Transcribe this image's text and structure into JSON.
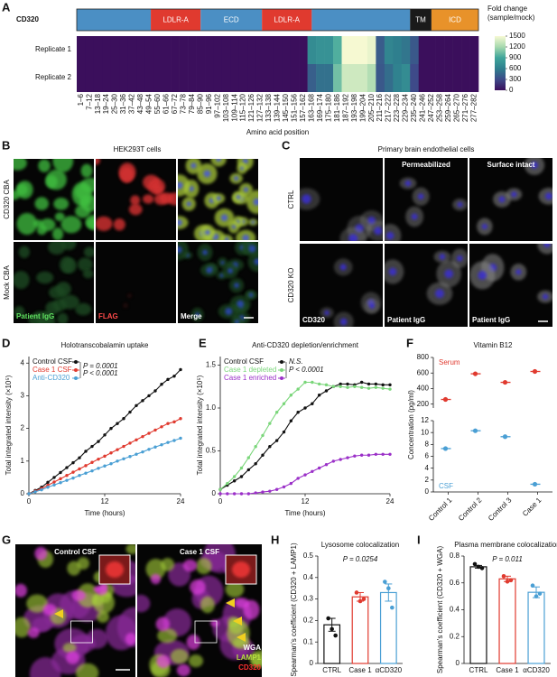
{
  "chart_data": [
    {
      "panel": "A",
      "type": "heatmap",
      "protein": "CD320",
      "domains": {
        "labels": [
          null,
          "LDLR-A",
          "ECD",
          "LDLR-A",
          null,
          "TM",
          "ICD"
        ],
        "starts": [
          0,
          52,
          87,
          130,
          165,
          234,
          249
        ],
        "ends": [
          52,
          87,
          130,
          165,
          234,
          249,
          282
        ],
        "colors": [
          "#4b8fc4",
          "#e03a2f",
          "#4b8fc4",
          "#e03a2f",
          "#4b8fc4",
          "#1a1a1a",
          "#e8922a"
        ]
      },
      "xlim": [
        0,
        282
      ],
      "categories": [
        "1–6",
        "7–12",
        "13–18",
        "19–24",
        "25–30",
        "31–36",
        "37–42",
        "43–48",
        "49–54",
        "55–60",
        "61–66",
        "67–72",
        "73–78",
        "79–84",
        "85–90",
        "91–96",
        "97–102",
        "103–108",
        "109–114",
        "115–120",
        "121–126",
        "127–132",
        "133–138",
        "139–144",
        "145–150",
        "151–156",
        "157–162",
        "163–168",
        "169–174",
        "175–180",
        "181–186",
        "187–192",
        "193–198",
        "199–204",
        "205–210",
        "211–216",
        "217–222",
        "223–228",
        "229–234",
        "235–240",
        "241–246",
        "247–252",
        "253–258",
        "259–264",
        "265–270",
        "271–276",
        "277–282"
      ],
      "series": [
        {
          "name": "Replicate 1",
          "values": [
            0,
            0,
            0,
            0,
            0,
            0,
            0,
            0,
            0,
            0,
            0,
            0,
            0,
            0,
            0,
            0,
            0,
            0,
            0,
            0,
            0,
            0,
            0,
            0,
            0,
            0,
            0,
            700,
            750,
            750,
            950,
            1500,
            1500,
            1500,
            1450,
            400,
            650,
            600,
            550,
            380,
            0,
            0,
            0,
            0,
            0,
            0,
            0
          ]
        },
        {
          "name": "Replicate 2",
          "values": [
            0,
            0,
            0,
            0,
            0,
            0,
            0,
            0,
            0,
            0,
            0,
            0,
            0,
            0,
            0,
            0,
            0,
            0,
            0,
            0,
            0,
            0,
            0,
            0,
            0,
            0,
            0,
            420,
            520,
            520,
            1050,
            1350,
            1350,
            1350,
            1250,
            380,
            500,
            620,
            700,
            300,
            0,
            0,
            0,
            0,
            0,
            0,
            0
          ]
        }
      ],
      "xlabel": "Amino acid position",
      "colorbar": {
        "title": "Fold change (sample/mock)",
        "lim": [
          0,
          1500
        ],
        "ticks": [
          0,
          300,
          600,
          900,
          1200,
          1500
        ],
        "colors": [
          "#3b0f5c",
          "#3e4a89",
          "#2f7f8e",
          "#3fa59b",
          "#a6d9ae",
          "#f6f9d2"
        ]
      }
    },
    {
      "panel": "D",
      "type": "line",
      "title": "Holotranscobalamin uptake",
      "xlabel": "Time (hours)",
      "ylabel": "Total integrated intensity (×10⁵)",
      "x": [
        0,
        1,
        2,
        3,
        4,
        5,
        6,
        7,
        8,
        9,
        10,
        11,
        12,
        13,
        14,
        15,
        16,
        17,
        18,
        19,
        20,
        21,
        22,
        23,
        24
      ],
      "xlim": [
        0,
        24
      ],
      "xticks": [
        0,
        12,
        24
      ],
      "ylim": [
        0,
        4.2
      ],
      "yticks": [
        0,
        1,
        2,
        3,
        4
      ],
      "series": [
        {
          "name": "Control CSF",
          "color": "#111111",
          "values": [
            0,
            0.1,
            0.2,
            0.35,
            0.5,
            0.65,
            0.8,
            0.95,
            1.1,
            1.3,
            1.45,
            1.6,
            1.8,
            2.0,
            2.15,
            2.3,
            2.5,
            2.7,
            2.85,
            3.0,
            3.15,
            3.35,
            3.5,
            3.6,
            3.8
          ]
        },
        {
          "name": "Case 1 CSF",
          "color": "#e03a2f",
          "values": [
            0,
            0.08,
            0.16,
            0.26,
            0.36,
            0.46,
            0.56,
            0.66,
            0.76,
            0.86,
            0.96,
            1.06,
            1.15,
            1.25,
            1.35,
            1.45,
            1.55,
            1.65,
            1.75,
            1.85,
            1.95,
            2.05,
            2.15,
            2.2,
            2.3
          ]
        },
        {
          "name": "Anti-CD320",
          "color": "#4a9fd4",
          "values": [
            0,
            0.06,
            0.12,
            0.2,
            0.27,
            0.34,
            0.41,
            0.48,
            0.56,
            0.63,
            0.7,
            0.78,
            0.85,
            0.92,
            1.0,
            1.07,
            1.14,
            1.21,
            1.28,
            1.36,
            1.43,
            1.5,
            1.57,
            1.63,
            1.7
          ]
        }
      ],
      "annotations": [
        "P = 0.0001",
        "P < 0.0001"
      ]
    },
    {
      "panel": "E",
      "type": "line",
      "title": "Anti-CD320 depletion/enrichment",
      "xlabel": "Time (hours)",
      "ylabel": "Total integrated intensity (×10⁵)",
      "x": [
        0,
        1,
        2,
        3,
        4,
        5,
        6,
        7,
        8,
        9,
        10,
        11,
        12,
        13,
        14,
        15,
        16,
        17,
        18,
        19,
        20,
        21,
        22,
        23,
        24
      ],
      "xlim": [
        0,
        24
      ],
      "xticks": [
        0,
        12,
        24
      ],
      "ylim": [
        0,
        1.6
      ],
      "yticks": [
        0,
        0.5,
        {
          "value": 1,
          "label": "1.0"
        },
        1.5
      ],
      "series": [
        {
          "name": "Control CSF",
          "color": "#111111",
          "values": [
            0.05,
            0.1,
            0.15,
            0.2,
            0.28,
            0.35,
            0.45,
            0.55,
            0.62,
            0.72,
            0.85,
            0.95,
            1.0,
            1.05,
            1.15,
            1.2,
            1.25,
            1.28,
            1.28,
            1.27,
            1.3,
            1.28,
            1.28,
            1.27,
            1.27
          ]
        },
        {
          "name": "Case 1 depleted",
          "color": "#7ad67a",
          "values": [
            0.05,
            0.12,
            0.2,
            0.3,
            0.42,
            0.55,
            0.68,
            0.82,
            0.95,
            1.05,
            1.15,
            1.22,
            1.3,
            1.3,
            1.28,
            1.27,
            1.25,
            1.25,
            1.24,
            1.25,
            1.24,
            1.23,
            1.24,
            1.23,
            1.22
          ]
        },
        {
          "name": "Case 1 enriched",
          "color": "#9b30c8",
          "values": [
            0,
            0,
            0,
            0,
            0,
            0.01,
            0.02,
            0.03,
            0.05,
            0.08,
            0.12,
            0.18,
            0.22,
            0.26,
            0.3,
            0.34,
            0.38,
            0.4,
            0.42,
            0.44,
            0.45,
            0.45,
            0.46,
            0.46,
            0.46
          ]
        }
      ],
      "annotations": [
        "N.S.",
        "P < 0.0001"
      ]
    },
    {
      "panel": "F",
      "type": "dot",
      "title": "Vitamin B12",
      "ylabel": "Concentration (pg/ml)",
      "categories": [
        "Control 1",
        "Control 2",
        "Control 3",
        "Case 1"
      ],
      "series": [
        {
          "name": "Serum",
          "color": "#e03a2f",
          "axis": "upper",
          "values": [
            260,
            590,
            480,
            620
          ]
        },
        {
          "name": "CSF",
          "color": "#4a9fd4",
          "values": [
            7.3,
            10.3,
            9.3,
            1.3
          ]
        }
      ],
      "ylim": [
        0,
        12
      ],
      "yticks": [
        0,
        2,
        4,
        6,
        8,
        10,
        12
      ],
      "upper_ylim": [
        150,
        800
      ],
      "upper_yticks": [
        200,
        400,
        600,
        800
      ]
    },
    {
      "panel": "H",
      "type": "bar",
      "title": "Lysosome colocalization",
      "ylabel": "Spearman's coefficient (CD320 + LAMP1)",
      "categories": [
        "CTRL",
        "Case 1",
        "αCD320"
      ],
      "values": [
        0.18,
        0.31,
        0.33
      ],
      "errors": [
        0.03,
        0.02,
        0.04
      ],
      "points": [
        [
          0.21,
          0.16,
          0.13
        ],
        [
          0.33,
          0.29,
          0.3
        ],
        [
          0.38,
          0.35,
          0.26
        ]
      ],
      "colors": [
        "#111111",
        "#e03a2f",
        "#4a9fd4"
      ],
      "ylim": [
        0,
        0.5
      ],
      "yticks": [
        0,
        0.1,
        0.2,
        0.3,
        0.4,
        0.5
      ],
      "annotations": [
        "P = 0.0254"
      ]
    },
    {
      "panel": "I",
      "type": "bar",
      "title": "Plasma membrane colocalization",
      "ylabel": "Spearman's coefficient (CD320 + WGA)",
      "categories": [
        "CTRL",
        "Case 1",
        "αCD320"
      ],
      "values": [
        0.72,
        0.63,
        0.53
      ],
      "errors": [
        0.01,
        0.02,
        0.04
      ],
      "points": [
        [
          0.74,
          0.72,
          0.71
        ],
        [
          0.65,
          0.61,
          0.62
        ],
        [
          0.58,
          0.5,
          0.52
        ]
      ],
      "colors": [
        "#111111",
        "#e03a2f",
        "#4a9fd4"
      ],
      "ylim": [
        0,
        0.8
      ],
      "yticks": [
        0,
        0.2,
        0.4,
        0.6,
        0.8
      ],
      "annotations": [
        "P = 0.011"
      ]
    }
  ],
  "image_panels": [
    {
      "panel": "B",
      "title": "HEK293T cells",
      "row_labels": [
        "CD320 CBA",
        "Mock CBA"
      ],
      "column_labels": [
        "Patient IgG",
        "FLAG",
        "Merge"
      ]
    },
    {
      "panel": "C",
      "title": "Primary brain endothelial cells",
      "column_titles": [
        "Permeabilized",
        "Surface intact"
      ],
      "row_labels": [
        "CTRL",
        "CD320 KO"
      ],
      "column_labels": [
        "CD320",
        "Patient IgG",
        "Patient IgG"
      ]
    },
    {
      "panel": "G",
      "column_titles": [
        "Control CSF",
        "Case 1 CSF"
      ],
      "channel_labels": [
        "WGA",
        "LAMP1",
        "CD320"
      ]
    }
  ]
}
